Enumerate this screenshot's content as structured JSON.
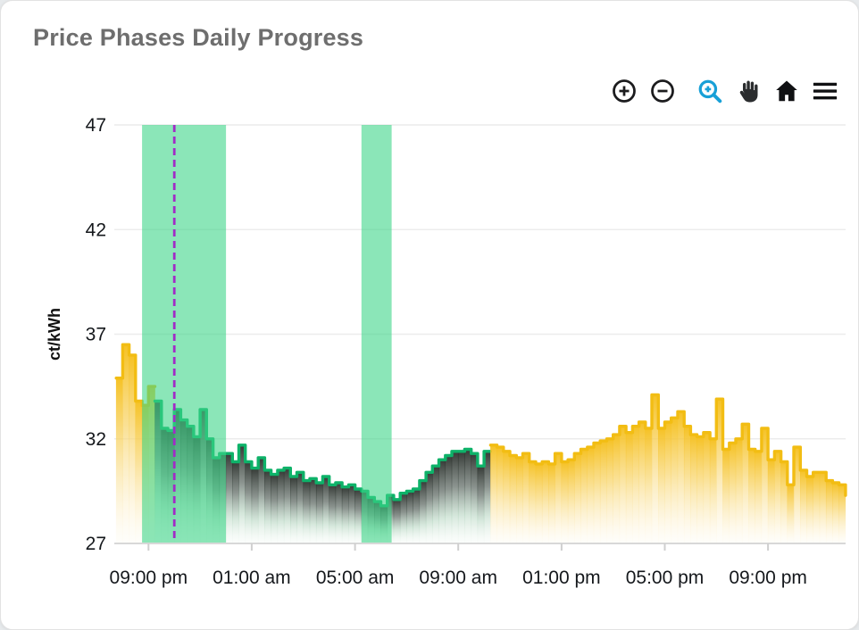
{
  "title": "Price Phases Daily Progress",
  "toolbar": {
    "buttons": [
      {
        "name": "zoom-in"
      },
      {
        "name": "zoom-out"
      },
      {
        "name": "box-zoom",
        "active": true,
        "color": "#18A0D7"
      },
      {
        "name": "pan"
      },
      {
        "name": "reset-view"
      },
      {
        "name": "menu"
      }
    ]
  },
  "chart_data": {
    "type": "step-area",
    "title": "Price Phases Daily Progress",
    "xlabel": "",
    "ylabel": "ct/kWh",
    "ylim": [
      27,
      47
    ],
    "yticks": [
      27,
      32,
      37,
      42,
      47
    ],
    "x_tick_labels": [
      "09:00 pm",
      "01:00 am",
      "05:00 am",
      "09:00 am",
      "01:00 pm",
      "05:00 pm",
      "09:00 pm"
    ],
    "x_tick_hours_after_first_tick": [
      0,
      4,
      8,
      12,
      16,
      20,
      24
    ],
    "x_range_hours_after_first_tick": [
      -1.25,
      27
    ],
    "step_hours": 0.25,
    "grid": "horizontal",
    "legend": "none",
    "series": [
      {
        "name": "price-evening-normal-phase",
        "color": "#F2BD13",
        "fill_style": "gold-fade",
        "start_hour": -1.25,
        "values": [
          34.9,
          36.5,
          36.0,
          33.8,
          33.6,
          34.5
        ]
      },
      {
        "name": "price-cheap-green-phase",
        "color": "#0EB269",
        "fill_style": "dark-fade",
        "start_hour": 0.25,
        "values": [
          33.8,
          32.5,
          32.4,
          33.4,
          32.9,
          32.6,
          32.1,
          33.4,
          32.0,
          31.1,
          31.3,
          31.3,
          30.9,
          31.7,
          30.9,
          30.6,
          31.1,
          30.5,
          30.3,
          30.5,
          30.6,
          30.2,
          30.4,
          30.0,
          30.1,
          29.9,
          30.2,
          29.8,
          29.9,
          29.7,
          29.8,
          29.6,
          29.5,
          29.2,
          29.0,
          28.8,
          29.3,
          29.1,
          29.4,
          29.5,
          29.6,
          30.0,
          30.4,
          30.7,
          31.0,
          31.2,
          31.4,
          31.4,
          31.5,
          31.3,
          30.7,
          31.4
        ]
      },
      {
        "name": "price-day-normal-phase",
        "color": "#F2BD13",
        "fill_style": "gold-fade",
        "start_hour": 13.25,
        "values": [
          31.7,
          31.6,
          31.4,
          31.2,
          31.1,
          31.3,
          30.9,
          30.8,
          30.9,
          30.8,
          31.3,
          30.9,
          31.0,
          31.3,
          31.5,
          31.6,
          31.8,
          31.9,
          32.0,
          32.2,
          32.6,
          32.3,
          32.6,
          32.8,
          32.5,
          34.1,
          32.5,
          32.8,
          33.0,
          33.3,
          32.6,
          32.2,
          32.1,
          32.3,
          32.0,
          33.9,
          31.5,
          31.8,
          32.0,
          32.7,
          31.5,
          31.4,
          32.5,
          31.0,
          31.4,
          30.9,
          29.8,
          31.6,
          30.5,
          30.2,
          30.4,
          30.4,
          30.0,
          29.9,
          29.8
        ],
        "end_value": 29.3
      }
    ],
    "bands": [
      {
        "name": "green-phase-window-1",
        "from_hour": -0.25,
        "to_hour": 3.0
      },
      {
        "name": "green-phase-window-2",
        "from_hour": 8.25,
        "to_hour": 9.42
      }
    ],
    "band_color": "rgba(61, 213, 136, 0.6)",
    "now_marker": {
      "hour": 1.0,
      "color": "#A22BC6",
      "style": "dashed"
    }
  }
}
